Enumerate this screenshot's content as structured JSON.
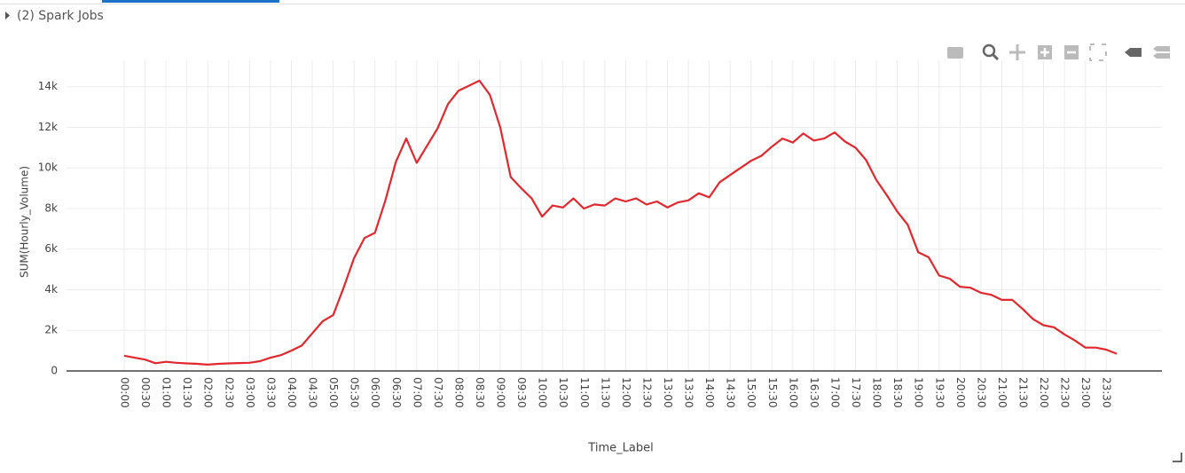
{
  "header": {
    "label": "(2) Spark Jobs"
  },
  "chart_data": {
    "type": "line",
    "x_label": "Time_Label",
    "y_label": "SUM(Hourly_Volume)",
    "categories": [
      "00:00",
      null,
      "00:30",
      null,
      "01:00",
      null,
      "01:30",
      null,
      "02:00",
      null,
      "02:30",
      null,
      "03:00",
      null,
      "03:30",
      null,
      "04:00",
      null,
      "04:30",
      null,
      "05:00",
      null,
      "05:30",
      null,
      "06:00",
      null,
      "06:30",
      null,
      "07:00",
      null,
      "07:30",
      null,
      "08:00",
      null,
      "08:30",
      null,
      "09:00",
      null,
      "09:30",
      null,
      "10:00",
      null,
      "10:30",
      null,
      "11:00",
      null,
      "11:30",
      null,
      "12:00",
      null,
      "12:30",
      null,
      "13:00",
      null,
      "13:30",
      null,
      "14:00",
      null,
      "14:30",
      null,
      "15:00",
      null,
      "15:30",
      null,
      "16:00",
      null,
      "16:30",
      null,
      "17:00",
      null,
      "17:30",
      null,
      "18:00",
      null,
      "18:30",
      null,
      "19:00",
      null,
      "19:30",
      null,
      "20:00",
      null,
      "20:30",
      null,
      "21:00",
      null,
      "21:30",
      null,
      "22:00",
      null,
      "22:30",
      null,
      "23:00",
      null,
      "23:30",
      null
    ],
    "values": [
      750,
      650,
      560,
      380,
      450,
      400,
      370,
      350,
      310,
      350,
      370,
      390,
      400,
      480,
      650,
      780,
      1000,
      1250,
      1850,
      2450,
      2750,
      4100,
      5550,
      6550,
      6800,
      8400,
      10300,
      11450,
      10250,
      11100,
      11950,
      13150,
      13800,
      14050,
      14300,
      13600,
      12000,
      9550,
      9000,
      8500,
      7600,
      8150,
      8050,
      8500,
      8000,
      8200,
      8150,
      8500,
      8350,
      8500,
      8200,
      8350,
      8050,
      8300,
      8400,
      8750,
      8550,
      9300,
      9650,
      10000,
      10350,
      10600,
      11050,
      11450,
      11250,
      11700,
      11350,
      11450,
      11750,
      11300,
      11000,
      10400,
      9400,
      8650,
      7850,
      7200,
      5850,
      5600,
      4700,
      4550,
      4150,
      4100,
      3850,
      3750,
      3500,
      3500,
      3050,
      2550,
      2250,
      2150,
      1800,
      1500,
      1150,
      1150,
      1050,
      850
    ],
    "color": "#e0282e",
    "ylim": [
      0,
      15300
    ],
    "yticks": [
      0,
      {
        "value": 2000,
        "label": "2k"
      },
      {
        "value": 4000,
        "label": "4k"
      },
      {
        "value": 6000,
        "label": "6k"
      },
      {
        "value": 8000,
        "label": "8k"
      },
      {
        "value": 10000,
        "label": "10k"
      },
      {
        "value": 12000,
        "label": "12k"
      },
      {
        "value": 14000,
        "label": "14k"
      }
    ],
    "grid": true
  }
}
